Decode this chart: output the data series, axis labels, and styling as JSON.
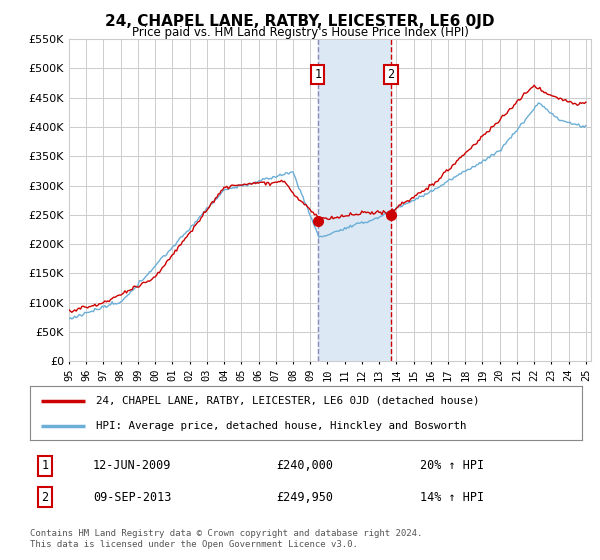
{
  "title": "24, CHAPEL LANE, RATBY, LEICESTER, LE6 0JD",
  "subtitle": "Price paid vs. HM Land Registry's House Price Index (HPI)",
  "legend_line1": "24, CHAPEL LANE, RATBY, LEICESTER, LE6 0JD (detached house)",
  "legend_line2": "HPI: Average price, detached house, Hinckley and Bosworth",
  "footnote": "Contains HM Land Registry data © Crown copyright and database right 2024.\nThis data is licensed under the Open Government Licence v3.0.",
  "transaction1_date": "12-JUN-2009",
  "transaction1_price": "£240,000",
  "transaction1_hpi": "20% ↑ HPI",
  "transaction2_date": "09-SEP-2013",
  "transaction2_price": "£249,950",
  "transaction2_hpi": "14% ↑ HPI",
  "hpi_line_color": "#6baed6",
  "price_line_color": "#cc0000",
  "transaction_marker_color": "#cc0000",
  "shading_color": "#dce9f5",
  "dashed_line1_color": "#aaaacc",
  "dashed_line2_color": "#cc0000",
  "grid_color": "#cccccc",
  "background_color": "#ffffff",
  "ylim": [
    0,
    550000
  ],
  "yticks": [
    0,
    50000,
    100000,
    150000,
    200000,
    250000,
    300000,
    350000,
    400000,
    450000,
    500000,
    550000
  ],
  "transaction1_x": 2009.45,
  "transaction2_x": 2013.69,
  "transaction1_y": 240000,
  "transaction2_y": 249950,
  "xmin": 1995.0,
  "xmax": 2025.3
}
